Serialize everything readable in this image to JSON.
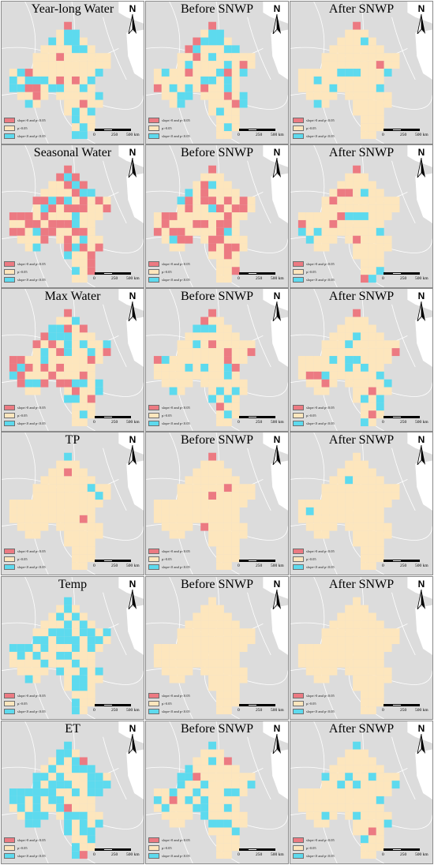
{
  "colors": {
    "increase": "#ec7a82",
    "nonsig": "#fde6bd",
    "decrease": "#5ddaee",
    "basemap": "#dcdcdc",
    "boundary": "#ffffff"
  },
  "legend": {
    "increase": "slope>0 and p<0.05",
    "nonsig": "p>0.05",
    "decrease": "slope<0 and p<0.05"
  },
  "north_label": "N",
  "scale": {
    "t0": "0",
    "t1": "250",
    "t2": "500 km"
  },
  "rows": [
    {
      "titles": [
        "Year-long Water",
        "Before SNWP",
        "After SNWP"
      ],
      "inc": [
        0.1,
        0.1,
        0.03
      ],
      "dec": [
        0.38,
        0.25,
        0.08
      ]
    },
    {
      "titles": [
        "Seasonal Water",
        "Before SNWP",
        "After SNWP"
      ],
      "inc": [
        0.38,
        0.22,
        0.08
      ],
      "dec": [
        0.12,
        0.06,
        0.08
      ]
    },
    {
      "titles": [
        "Max Water",
        "Before SNWP",
        "After SNWP"
      ],
      "inc": [
        0.2,
        0.12,
        0.1
      ],
      "dec": [
        0.28,
        0.14,
        0.1
      ]
    },
    {
      "titles": [
        "TP",
        "Before SNWP",
        "After SNWP"
      ],
      "inc": [
        0.03,
        0.05,
        0.0
      ],
      "dec": [
        0.01,
        0.0,
        0.03
      ]
    },
    {
      "titles": [
        "Temp",
        "Before SNWP",
        "After SNWP"
      ],
      "inc": [
        0.0,
        0.0,
        0.0
      ],
      "dec": [
        0.35,
        0.0,
        0.003
      ]
    },
    {
      "titles": [
        "ET",
        "Before SNWP",
        "After SNWP"
      ],
      "inc": [
        0.04,
        0.04,
        0.03
      ],
      "dec": [
        0.55,
        0.16,
        0.12
      ]
    }
  ]
}
